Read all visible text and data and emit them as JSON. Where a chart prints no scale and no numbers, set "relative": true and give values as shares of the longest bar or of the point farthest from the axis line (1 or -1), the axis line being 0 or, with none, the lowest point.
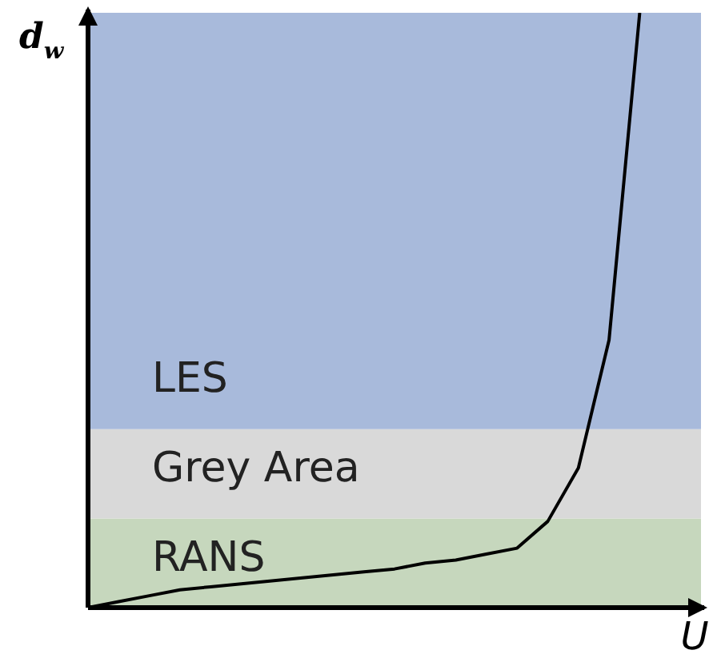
{
  "chart_data": {
    "type": "line",
    "relative": true,
    "xlabel": "U",
    "ylabel": "d$_{w}$",
    "categories": [
      null,
      null,
      null,
      null,
      null,
      null,
      null,
      null,
      null,
      null,
      null,
      null,
      null,
      null,
      null,
      null,
      null,
      null,
      null,
      null,
      null
    ],
    "series": [
      {
        "color": "#000000",
        "values": [
          0,
          0.01,
          0.02,
          0.03,
          0.035,
          0.04,
          0.045,
          0.05,
          0.055,
          0.06,
          0.065,
          0.075,
          0.08,
          0.09,
          0.1,
          0.145,
          0.235,
          0.45,
          1.0,
          null,
          null
        ]
      }
    ],
    "bands": [
      {
        "axis": "y",
        "from": 0,
        "to": 0.15,
        "label": "RANS",
        "color": "#c6d7bd"
      },
      {
        "axis": "y",
        "from": 0.15,
        "to": 0.3,
        "label": "Grey Area",
        "color": "#d9d9d9"
      },
      {
        "axis": "y",
        "from": 0.3,
        "to": 1.0,
        "label": "LES",
        "color": "#a8badb"
      }
    ],
    "legend": false,
    "marker": "none",
    "line_style": "solid"
  }
}
